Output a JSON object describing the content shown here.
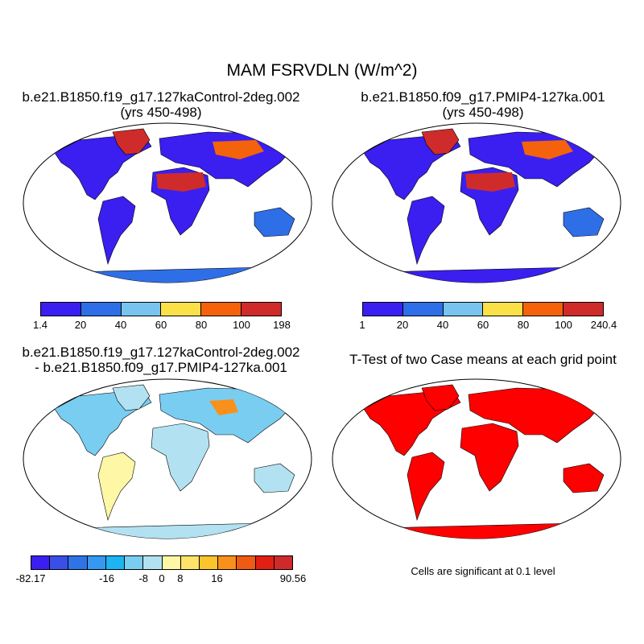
{
  "main_title": "MAM FSRVDLN (W/m^2)",
  "panels": {
    "top_left": {
      "title_line1": "b.e21.B1850.f19_g17.127kaControl-2deg.002",
      "title_line2": "(yrs 450-498)"
    },
    "top_right": {
      "title_line1": "b.e21.B1850.f09_g17.PMIP4-127ka.001",
      "title_line2": "(yrs 450-498)"
    },
    "bottom_left": {
      "title_line1": "b.e21.B1850.f19_g17.127kaControl-2deg.002",
      "title_line2": "- b.e21.B1850.f09_g17.PMIP4-127ka.001"
    },
    "bottom_right": {
      "title_line1": "T-Test of two Case means at each grid point"
    }
  },
  "colorbars": {
    "cb1": {
      "colors": [
        "#3a1ff0",
        "#2e6fe8",
        "#79c4ef",
        "#fbe04a",
        "#f5620c",
        "#d02b2b"
      ],
      "labels": [
        "1.4",
        "20",
        "40",
        "60",
        "80",
        "100",
        "198"
      ]
    },
    "cb2": {
      "colors": [
        "#3a1ff0",
        "#2e6fe8",
        "#79c4ef",
        "#fbe04a",
        "#f5620c",
        "#d02b2b"
      ],
      "labels": [
        "1",
        "20",
        "40",
        "60",
        "80",
        "100",
        "240.4"
      ]
    },
    "cb3": {
      "colors": [
        "#3b1ff2",
        "#3a4ee8",
        "#2f74e6",
        "#3698f0",
        "#1cb4f2",
        "#79cdf1",
        "#b2e2f1",
        "#fdf7a6",
        "#fde468",
        "#fbc42c",
        "#f9901b",
        "#f05a13",
        "#e21f14",
        "#cf2a2a"
      ],
      "labels": [
        "-82.17",
        "-16",
        "-8",
        "0",
        "8",
        "16",
        "90.56"
      ]
    }
  },
  "significance_note": "Cells are significant at 0.1 level",
  "significance_color": "#ff0000"
}
